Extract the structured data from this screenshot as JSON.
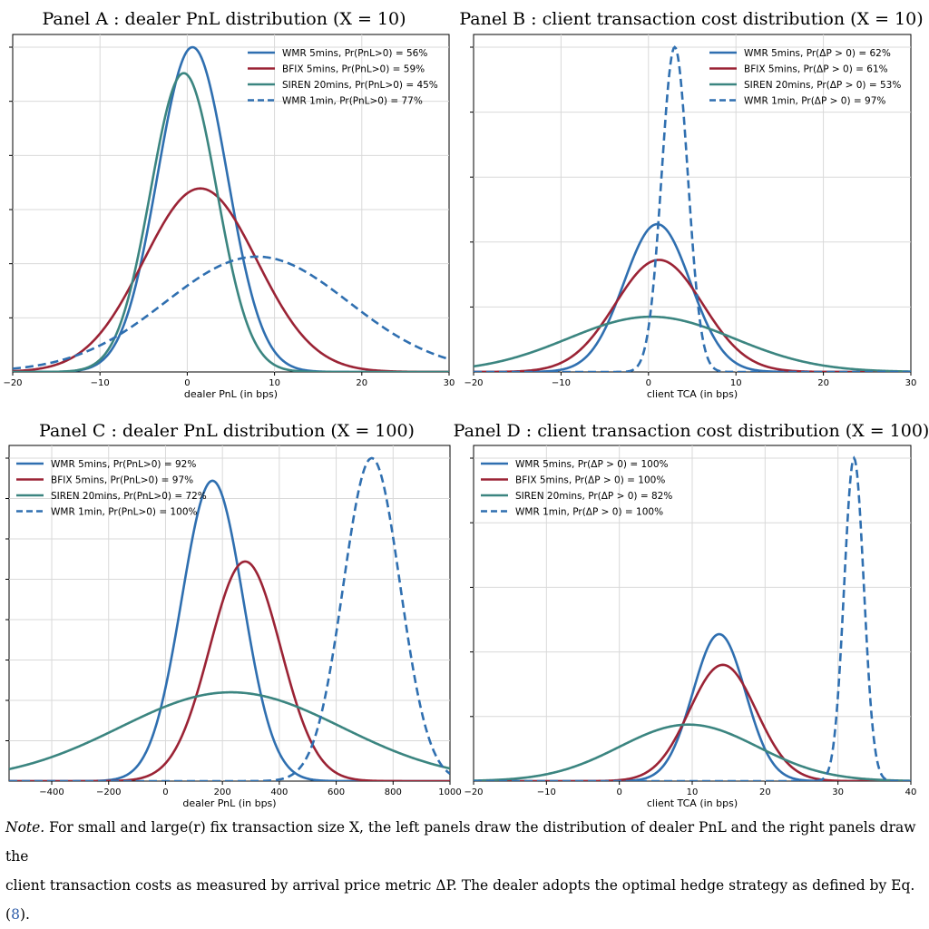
{
  "chart_data": [
    {
      "type": "line",
      "title": "Panel A : dealer PnL distribution (X = 10)",
      "xlabel": "dealer PnL (in bps)",
      "ylabel": "",
      "xlim": [
        -20,
        30
      ],
      "xticks": [
        -20,
        -10,
        0,
        10,
        20,
        30
      ],
      "xtick_labels": [
        "−20",
        "−10",
        "0",
        "10",
        "20",
        "30"
      ],
      "y_tick_count": 6,
      "grid": true,
      "legend_position": "top-right",
      "series": [
        {
          "name": "WMR 5mins, Pr(PnL>0) = 56%",
          "color": "#2f6fb0",
          "style": "solid",
          "mean": 0.6,
          "sd": 4.0,
          "peak": 1.0
        },
        {
          "name": "BFIX 5mins, Pr(PnL>0) = 59%",
          "color": "#9b2335",
          "style": "solid",
          "mean": 1.5,
          "sd": 6.5,
          "peak": 0.565
        },
        {
          "name": "SIREN 20mins, Pr(PnL>0) = 45%",
          "color": "#3b8580",
          "style": "solid",
          "mean": -0.4,
          "sd": 3.8,
          "peak": 0.92
        },
        {
          "name": "WMR 1min, Pr(PnL>0) = 77%",
          "color": "#2f6fb0",
          "style": "dashed",
          "mean": 8.0,
          "sd": 10.5,
          "peak": 0.355
        }
      ]
    },
    {
      "type": "line",
      "title": "Panel B : client transaction cost distribution (X = 10)",
      "xlabel": "client TCA (in bps)",
      "ylabel": "",
      "xlim": [
        -20,
        30
      ],
      "xticks": [
        -20,
        -10,
        0,
        10,
        20,
        30
      ],
      "xtick_labels": [
        "−20",
        "−10",
        "0",
        "10",
        "20",
        "30"
      ],
      "y_tick_count": 5,
      "grid": true,
      "legend_position": "top-right",
      "series": [
        {
          "name": "WMR 5mins, Pr(ΔP > 0) = 62%",
          "color": "#2f6fb0",
          "style": "solid",
          "mean": 1.0,
          "sd": 3.8,
          "peak": 0.455
        },
        {
          "name": "BFIX 5mins, Pr(ΔP > 0) = 61%",
          "color": "#9b2335",
          "style": "solid",
          "mean": 1.2,
          "sd": 5.0,
          "peak": 0.345
        },
        {
          "name": "SIREN 20mins, Pr(ΔP > 0) = 53%",
          "color": "#3b8580",
          "style": "solid",
          "mean": 0.3,
          "sd": 9.5,
          "peak": 0.17
        },
        {
          "name": "WMR 1min, Pr(ΔP > 0) = 97%",
          "color": "#2f6fb0",
          "style": "dashed",
          "mean": 3.0,
          "sd": 1.5,
          "peak": 1.0
        }
      ]
    },
    {
      "type": "line",
      "title": "Panel C : dealer PnL distribution (X = 100)",
      "xlabel": "dealer PnL (in bps)",
      "ylabel": "",
      "xlim": [
        -550,
        1000
      ],
      "xticks": [
        -400,
        -200,
        0,
        200,
        400,
        600,
        800,
        1000
      ],
      "xtick_labels": [
        "−400",
        "−200",
        "0",
        "200",
        "400",
        "600",
        "800",
        "1000"
      ],
      "y_tick_count": 8,
      "grid": true,
      "legend_position": "top-left",
      "series": [
        {
          "name": "WMR 5mins, Pr(PnL>0) = 92%",
          "color": "#2f6fb0",
          "style": "solid",
          "mean": 165,
          "sd": 108,
          "peak": 0.93
        },
        {
          "name": "BFIX 5mins, Pr(PnL>0) = 97%",
          "color": "#9b2335",
          "style": "solid",
          "mean": 280,
          "sd": 125,
          "peak": 0.68
        },
        {
          "name": "SIREN 20mins, Pr(PnL>0) = 72%",
          "color": "#3b8580",
          "style": "solid",
          "mean": 230,
          "sd": 390,
          "peak": 0.275
        },
        {
          "name": "WMR 1min, Pr(PnL>0) = 100%",
          "color": "#2f6fb0",
          "style": "dashed",
          "mean": 725,
          "sd": 100,
          "peak": 1.0
        }
      ]
    },
    {
      "type": "line",
      "title": "Panel D : client transaction cost distribution (X = 100)",
      "xlabel": "client TCA (in bps)",
      "ylabel": "",
      "xlim": [
        -20,
        40
      ],
      "xticks": [
        -20,
        -10,
        0,
        10,
        20,
        30,
        40
      ],
      "xtick_labels": [
        "−20",
        "−10",
        "0",
        "10",
        "20",
        "30",
        "40"
      ],
      "y_tick_count": 5,
      "grid": true,
      "legend_position": "top-left",
      "series": [
        {
          "name": "WMR 5mins, Pr(ΔP > 0) = 100%",
          "color": "#2f6fb0",
          "style": "solid",
          "mean": 13.7,
          "sd": 3.6,
          "peak": 0.455
        },
        {
          "name": "BFIX 5mins, Pr(ΔP > 0) = 100%",
          "color": "#9b2335",
          "style": "solid",
          "mean": 14.2,
          "sd": 4.6,
          "peak": 0.36
        },
        {
          "name": "SIREN 20mins, Pr(ΔP > 0) = 82%",
          "color": "#3b8580",
          "style": "solid",
          "mean": 9.5,
          "sd": 9.5,
          "peak": 0.175
        },
        {
          "name": "WMR 1min, Pr(ΔP > 0) = 100%",
          "color": "#2f6fb0",
          "style": "dashed",
          "mean": 32.2,
          "sd": 1.35,
          "peak": 1.0
        }
      ]
    }
  ],
  "note": {
    "prefix": "Note.",
    "line1": " For small and large(r) fix transaction size X, the left panels draw the distribution of dealer PnL and the right panels draw the",
    "line2_a": "client transaction costs as measured by arrival price metric ΔP. The dealer adopts the optimal hedge strategy as defined by Eq. (",
    "eq_ref": "8",
    "line2_b": ")."
  }
}
